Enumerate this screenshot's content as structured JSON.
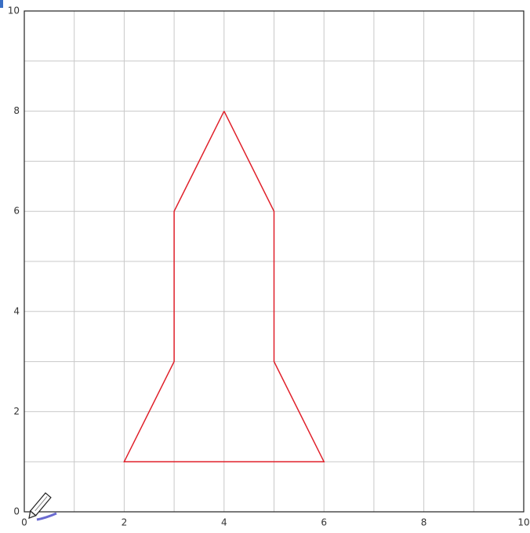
{
  "chart_data": {
    "type": "line",
    "x": [
      4,
      5,
      5,
      6,
      2,
      3,
      3,
      4
    ],
    "series": [
      {
        "color": "#e0202a",
        "values": [
          8,
          6,
          3,
          1,
          1,
          3,
          6,
          8
        ]
      }
    ],
    "xlim": [
      0,
      10
    ],
    "ylim": [
      0,
      10
    ],
    "xticks": [
      0,
      2,
      4,
      6,
      8,
      10
    ],
    "yticks": [
      0,
      2,
      4,
      6,
      8,
      10
    ],
    "minor_xticks": [
      1,
      3,
      5,
      7,
      9
    ],
    "minor_yticks": [
      1,
      3,
      5,
      7,
      9
    ],
    "grid": true
  }
}
